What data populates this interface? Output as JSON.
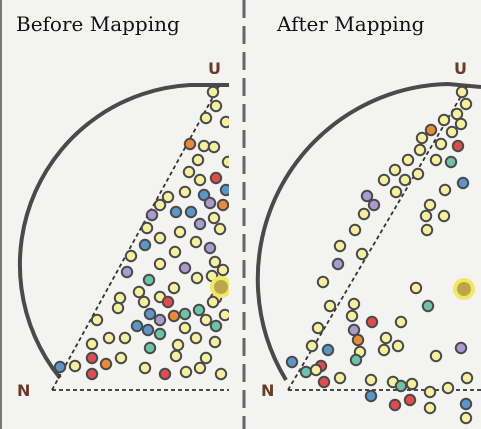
{
  "panels": [
    {
      "title": "Before Mapping",
      "vertex_top": "U",
      "vertex_left": "N"
    },
    {
      "title": "After Mapping",
      "vertex_top": "U",
      "vertex_left": "N"
    }
  ],
  "colors": {
    "background": "#f3f3f1",
    "outline": "#4a4a4a",
    "yellow": "#f5efa0",
    "purple": "#a99bd0",
    "blue": "#5b95c9",
    "teal": "#6cc3a8",
    "red": "#de4c4c",
    "orange": "#e88b39",
    "highlight": "#bba74a",
    "label": "#6b3a24"
  }
}
